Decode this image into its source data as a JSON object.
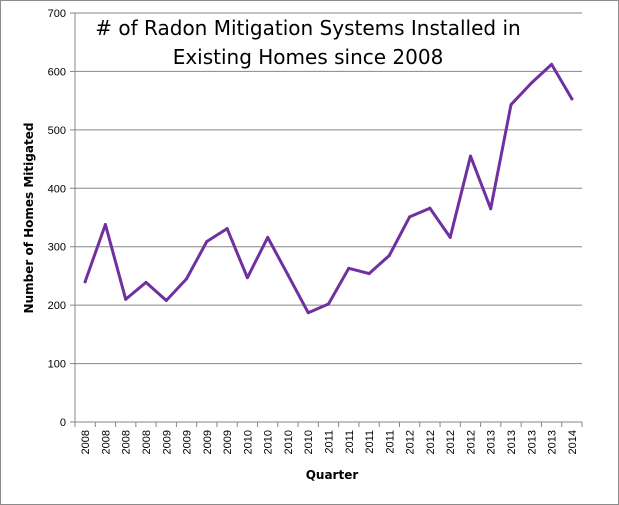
{
  "chart_data": {
    "type": "line",
    "title_lines": [
      "# of Radon Mitigation Systems Installed in",
      "Existing Homes since 2008"
    ],
    "xlabel": "Quarter",
    "ylabel": "Number of Homes Mitigated",
    "categories": [
      "2008",
      "2008",
      "2008",
      "2008",
      "2009",
      "2009",
      "2009",
      "2009",
      "2010",
      "2010",
      "2010",
      "2010",
      "2011",
      "2011",
      "2011",
      "2011",
      "2012",
      "2012",
      "2012",
      "2012",
      "2013",
      "2013",
      "2013",
      "2013",
      "2014"
    ],
    "series": [
      {
        "values": [
          240,
          338,
          210,
          239,
          208,
          245,
          309,
          331,
          247,
          316,
          252,
          187,
          202,
          263,
          254,
          285,
          351,
          366,
          316,
          455,
          365,
          543,
          580,
          612,
          553
        ],
        "color": "#7030a0"
      }
    ],
    "ylim": [
      0,
      700
    ],
    "yticks": [
      0,
      100,
      200,
      300,
      400,
      500,
      600,
      700
    ],
    "grid": true,
    "legend": "none"
  }
}
